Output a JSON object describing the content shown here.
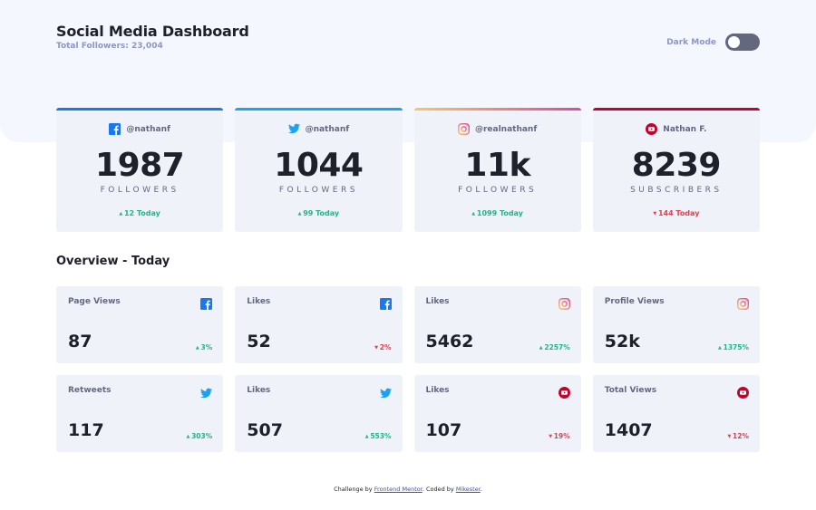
{
  "header": {
    "title": "Social Media Dashboard",
    "subtitle": "Total Followers: 23,004",
    "mode_label": "Dark Mode"
  },
  "colors": {
    "facebook": "#1877f2",
    "twitter": "#1da1f2",
    "instagram_gradient": [
      "#fdc468",
      "#df4996"
    ],
    "youtube": "#c4032a",
    "up": "#1eb589",
    "down": "#dc414c"
  },
  "cards": [
    {
      "platform": "facebook",
      "icon": "facebook-icon",
      "handle": "@nathanf",
      "count": "1987",
      "unit": "FOLLOWERS",
      "change": "12 Today",
      "direction": "up"
    },
    {
      "platform": "twitter",
      "icon": "twitter-icon",
      "handle": "@nathanf",
      "count": "1044",
      "unit": "FOLLOWERS",
      "change": "99 Today",
      "direction": "up"
    },
    {
      "platform": "instagram",
      "icon": "instagram-icon",
      "handle": "@realnathanf",
      "count": "11k",
      "unit": "FOLLOWERS",
      "change": "1099 Today",
      "direction": "up"
    },
    {
      "platform": "youtube",
      "icon": "youtube-icon",
      "handle": "Nathan F.",
      "count": "8239",
      "unit": "SUBSCRIBERS",
      "change": "144 Today",
      "direction": "down"
    }
  ],
  "overview": {
    "title": "Overview - Today",
    "items": [
      {
        "label": "Page Views",
        "platform": "facebook",
        "value": "87",
        "change": "3%",
        "direction": "up"
      },
      {
        "label": "Likes",
        "platform": "facebook",
        "value": "52",
        "change": "2%",
        "direction": "down"
      },
      {
        "label": "Likes",
        "platform": "instagram",
        "value": "5462",
        "change": "2257%",
        "direction": "up"
      },
      {
        "label": "Profile Views",
        "platform": "instagram",
        "value": "52k",
        "change": "1375%",
        "direction": "up"
      },
      {
        "label": "Retweets",
        "platform": "twitter",
        "value": "117",
        "change": "303%",
        "direction": "up"
      },
      {
        "label": "Likes",
        "platform": "twitter",
        "value": "507",
        "change": "553%",
        "direction": "up"
      },
      {
        "label": "Likes",
        "platform": "youtube",
        "value": "107",
        "change": "19%",
        "direction": "down"
      },
      {
        "label": "Total Views",
        "platform": "youtube",
        "value": "1407",
        "change": "12%",
        "direction": "down"
      }
    ]
  },
  "footer": {
    "prefix": "Challenge by ",
    "link1": "Frontend Mentor",
    "middle": ". Coded by ",
    "link2": "Mikester",
    "suffix": "."
  }
}
